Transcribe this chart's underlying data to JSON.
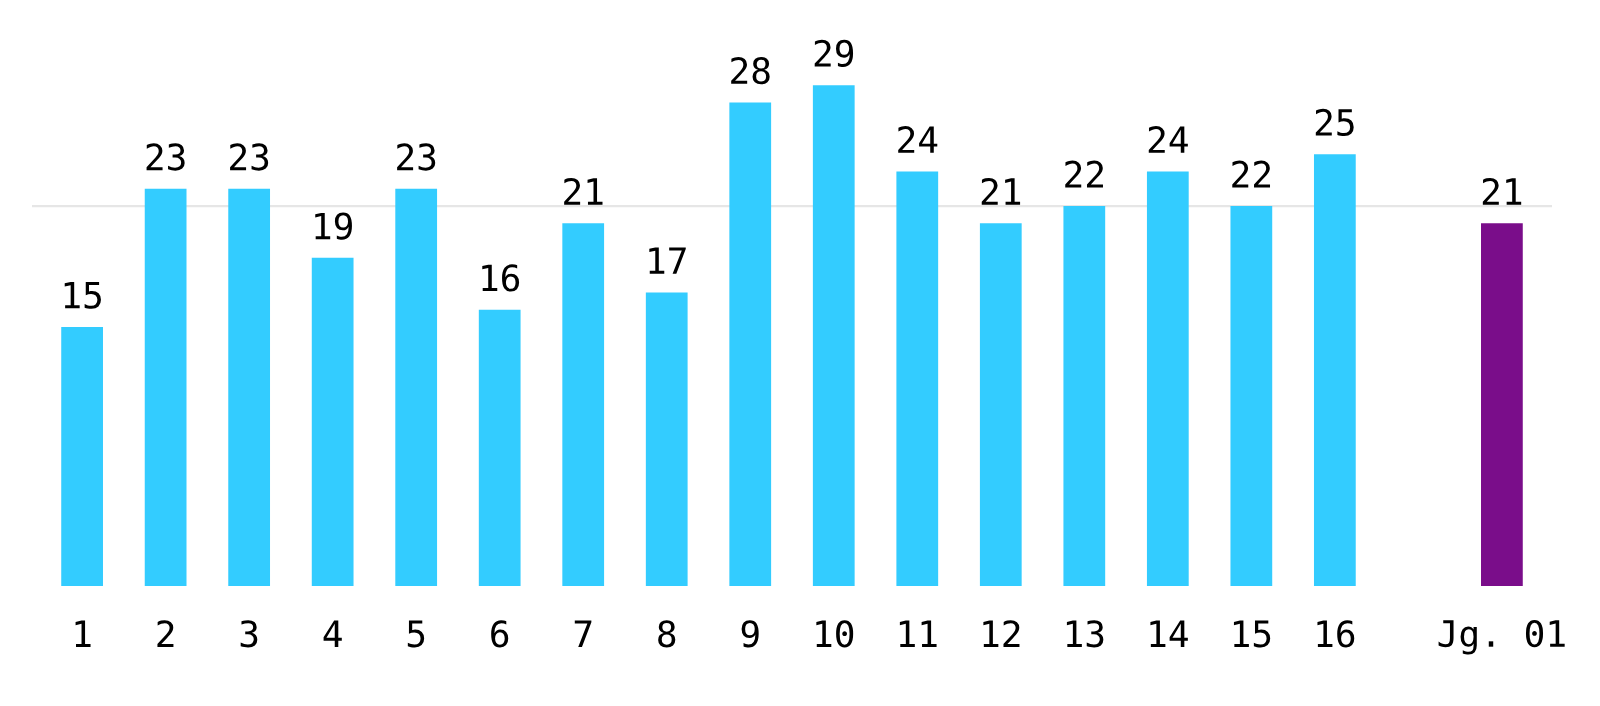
{
  "chart_data": {
    "type": "bar",
    "categories": [
      "1",
      "2",
      "3",
      "4",
      "5",
      "6",
      "7",
      "8",
      "9",
      "10",
      "11",
      "12",
      "13",
      "14",
      "15",
      "16",
      null,
      "Jg. 01"
    ],
    "values": [
      15,
      23,
      23,
      19,
      23,
      16,
      21,
      17,
      28,
      29,
      24,
      21,
      22,
      24,
      22,
      25,
      null,
      21
    ],
    "colors": [
      "#33ccff",
      "#33ccff",
      "#33ccff",
      "#33ccff",
      "#33ccff",
      "#33ccff",
      "#33ccff",
      "#33ccff",
      "#33ccff",
      "#33ccff",
      "#33ccff",
      "#33ccff",
      "#33ccff",
      "#33ccff",
      "#33ccff",
      "#33ccff",
      "#33ccff",
      "#7a0d8a"
    ],
    "data_labels": true,
    "ref_lines": [
      {
        "axis": "y",
        "value": 22,
        "label": null,
        "color": "#e6e6e6"
      }
    ],
    "grid": false,
    "legend": false
  }
}
